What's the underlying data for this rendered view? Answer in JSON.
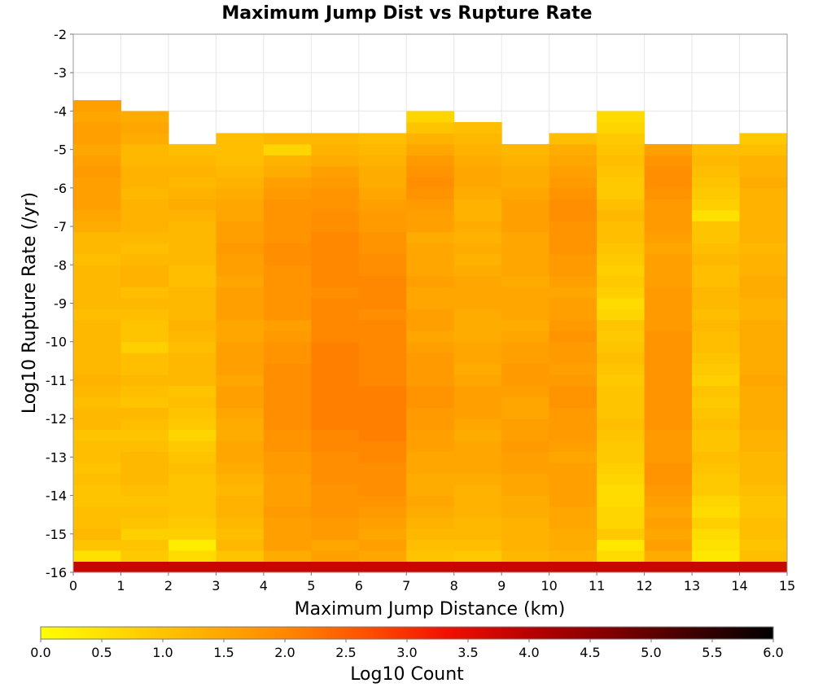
{
  "chart_data": {
    "type": "heatmap",
    "title": "Maximum Jump Dist vs Rupture Rate",
    "xlabel": "Maximum Jump Distance (km)",
    "ylabel": "Log10 Rupture Rate (/yr)",
    "xlim": [
      0,
      15
    ],
    "ylim": [
      -16,
      -2
    ],
    "x_ticks": [
      "0",
      "1",
      "2",
      "3",
      "4",
      "5",
      "6",
      "7",
      "8",
      "9",
      "10",
      "11",
      "12",
      "13",
      "14",
      "15"
    ],
    "y_ticks": [
      "-2",
      "-3",
      "-4",
      "-5",
      "-6",
      "-7",
      "-8",
      "-9",
      "-10",
      "-11",
      "-12",
      "-13",
      "-14",
      "-15",
      "-16"
    ],
    "x_bin_width": 1,
    "y_bin_height": 0.2857,
    "columns": [
      {
        "x": 0.5,
        "top": -3.3,
        "values": [
          3.8,
          0.5,
          1.0,
          1.2,
          1.1,
          1.1,
          1.0,
          1.0,
          1.1,
          1.0,
          1.1,
          1.1,
          1.0,
          1.2,
          1.2,
          1.1,
          1.2,
          1.3,
          1.2,
          1.2,
          1.2,
          1.2,
          1.2,
          1.1,
          1.2,
          1.2,
          1.2,
          1.2,
          1.1,
          1.2,
          1.2,
          1.4,
          1.5,
          1.6,
          1.6,
          1.6,
          1.7,
          1.6,
          1.5,
          1.6,
          1.6,
          1.5,
          1.6
        ]
      },
      {
        "x": 1.5,
        "top": -3.6,
        "values": [
          3.8,
          0.9,
          1.0,
          0.8,
          1.0,
          1.1,
          1.0,
          1.1,
          1.2,
          1.2,
          1.2,
          1.1,
          1.0,
          1.1,
          1.2,
          1.0,
          1.1,
          1.2,
          1.1,
          1.1,
          0.8,
          1.0,
          1.0,
          1.1,
          1.2,
          1.1,
          1.3,
          1.3,
          1.2,
          1.1,
          1.2,
          1.3,
          1.3,
          1.3,
          1.2,
          1.3,
          1.3,
          1.2,
          1.2,
          1.4,
          1.5,
          1.4
        ]
      },
      {
        "x": 2.5,
        "top": -4.15,
        "values": [
          3.8,
          0.6,
          0.3,
          0.8,
          0.9,
          1.0,
          1.0,
          1.0,
          1.0,
          1.1,
          1.0,
          0.9,
          0.7,
          0.9,
          1.0,
          1.1,
          1.0,
          1.2,
          1.2,
          1.2,
          1.1,
          1.2,
          1.3,
          1.2,
          1.2,
          1.2,
          1.1,
          1.1,
          1.2,
          1.2,
          1.2,
          1.2,
          1.3,
          1.4,
          1.3,
          1.2,
          1.3,
          1.2,
          1.1
        ]
      },
      {
        "x": 3.5,
        "top": -3.9,
        "values": [
          3.8,
          1.0,
          1.2,
          1.1,
          1.2,
          1.3,
          1.3,
          1.2,
          1.3,
          1.4,
          1.5,
          1.5,
          1.4,
          1.4,
          1.5,
          1.6,
          1.6,
          1.5,
          1.6,
          1.6,
          1.6,
          1.5,
          1.5,
          1.6,
          1.6,
          1.6,
          1.5,
          1.6,
          1.6,
          1.7,
          1.6,
          1.6,
          1.5,
          1.5,
          1.4,
          1.3,
          1.2,
          1.1,
          1.1,
          1.1
        ]
      },
      {
        "x": 4.5,
        "top": -3.9,
        "values": [
          3.8,
          1.4,
          1.6,
          1.6,
          1.6,
          1.7,
          1.6,
          1.6,
          1.6,
          1.7,
          1.7,
          1.8,
          1.8,
          1.9,
          1.9,
          1.9,
          1.9,
          1.9,
          1.9,
          1.8,
          1.8,
          1.7,
          1.6,
          1.8,
          1.8,
          1.8,
          1.8,
          1.8,
          1.9,
          1.9,
          1.8,
          1.8,
          1.8,
          1.8,
          1.7,
          1.6,
          1.4,
          1.3,
          0.7,
          1.2
        ]
      },
      {
        "x": 5.5,
        "top": -3.85,
        "values": [
          3.8,
          1.6,
          1.5,
          1.7,
          1.7,
          1.8,
          1.8,
          1.8,
          1.9,
          1.9,
          1.9,
          2.0,
          2.0,
          2.1,
          2.1,
          2.1,
          2.1,
          2.1,
          2.1,
          2.1,
          2.1,
          2.0,
          2.0,
          2.0,
          2.0,
          1.9,
          2.0,
          2.0,
          2.0,
          2.0,
          2.0,
          1.9,
          1.9,
          1.8,
          1.8,
          1.7,
          1.6,
          1.4,
          1.3,
          1.2
        ]
      },
      {
        "x": 6.5,
        "top": -3.9,
        "values": [
          3.8,
          1.5,
          1.6,
          1.5,
          1.6,
          1.7,
          1.8,
          1.9,
          1.9,
          1.9,
          2.0,
          2.0,
          2.1,
          2.1,
          2.1,
          2.1,
          2.1,
          2.0,
          2.0,
          2.0,
          2.0,
          2.0,
          2.0,
          1.9,
          2.0,
          2.0,
          2.0,
          1.9,
          1.9,
          1.8,
          1.8,
          1.7,
          1.7,
          1.6,
          1.5,
          1.4,
          1.4,
          1.3,
          1.2,
          1.1
        ]
      },
      {
        "x": 7.5,
        "top": -3.6,
        "values": [
          3.8,
          1.0,
          1.1,
          1.2,
          1.3,
          1.4,
          1.5,
          1.4,
          1.4,
          1.5,
          1.5,
          1.6,
          1.6,
          1.7,
          1.7,
          1.8,
          1.8,
          1.7,
          1.7,
          1.7,
          1.6,
          1.5,
          1.6,
          1.6,
          1.5,
          1.5,
          1.6,
          1.5,
          1.5,
          1.5,
          1.4,
          1.6,
          1.6,
          1.7,
          1.8,
          1.9,
          1.8,
          1.7,
          1.5,
          1.3,
          1.0,
          0.7
        ]
      },
      {
        "x": 8.5,
        "top": -3.9,
        "values": [
          3.8,
          0.9,
          1.1,
          1.2,
          1.2,
          1.3,
          1.3,
          1.3,
          1.4,
          1.5,
          1.5,
          1.5,
          1.4,
          1.5,
          1.6,
          1.6,
          1.6,
          1.5,
          1.4,
          1.5,
          1.5,
          1.4,
          1.4,
          1.4,
          1.5,
          1.5,
          1.5,
          1.4,
          1.3,
          1.4,
          1.3,
          1.4,
          1.3,
          1.3,
          1.4,
          1.5,
          1.5,
          1.4,
          1.3,
          1.2,
          1.1
        ]
      },
      {
        "x": 9.5,
        "top": -4.15,
        "values": [
          3.8,
          1.2,
          1.3,
          1.3,
          1.3,
          1.4,
          1.4,
          1.5,
          1.5,
          1.6,
          1.6,
          1.7,
          1.6,
          1.6,
          1.5,
          1.5,
          1.6,
          1.7,
          1.7,
          1.6,
          1.6,
          1.5,
          1.4,
          1.5,
          1.5,
          1.5,
          1.4,
          1.5,
          1.5,
          1.5,
          1.5,
          1.6,
          1.6,
          1.6,
          1.5,
          1.4,
          1.4,
          1.3,
          1.2
        ]
      },
      {
        "x": 10.5,
        "top": -3.9,
        "values": [
          3.8,
          1.3,
          1.4,
          1.4,
          1.5,
          1.5,
          1.6,
          1.6,
          1.6,
          1.6,
          1.5,
          1.6,
          1.7,
          1.7,
          1.7,
          1.8,
          1.8,
          1.7,
          1.6,
          1.7,
          1.7,
          1.8,
          1.7,
          1.6,
          1.6,
          1.5,
          1.6,
          1.7,
          1.7,
          1.8,
          1.8,
          1.8,
          1.9,
          1.9,
          1.8,
          1.7,
          1.6,
          1.5,
          1.4,
          1.1
        ]
      },
      {
        "x": 11.5,
        "top": -3.6,
        "values": [
          3.8,
          0.6,
          0.4,
          0.9,
          0.7,
          0.7,
          0.6,
          0.6,
          0.7,
          0.8,
          0.9,
          0.9,
          1.0,
          1.1,
          1.0,
          1.0,
          1.0,
          0.9,
          1.0,
          1.1,
          1.0,
          0.9,
          1.0,
          0.7,
          0.6,
          0.8,
          0.9,
          0.8,
          0.9,
          1.0,
          1.1,
          1.1,
          1.2,
          1.1,
          0.9,
          0.9,
          1.0,
          1.1,
          1.0,
          0.9,
          0.7,
          0.6
        ]
      },
      {
        "x": 12.5,
        "top": -4.15,
        "values": [
          3.8,
          1.4,
          1.6,
          1.5,
          1.6,
          1.5,
          1.6,
          1.7,
          1.8,
          1.8,
          1.7,
          1.7,
          1.7,
          1.8,
          1.8,
          1.8,
          1.8,
          1.8,
          1.8,
          1.8,
          1.8,
          1.8,
          1.7,
          1.7,
          1.7,
          1.7,
          1.6,
          1.6,
          1.6,
          1.5,
          1.6,
          1.7,
          1.7,
          1.7,
          1.8,
          1.9,
          1.9,
          1.8,
          1.6
        ]
      },
      {
        "x": 13.5,
        "top": -4.15,
        "values": [
          3.8,
          0.4,
          0.5,
          0.6,
          0.8,
          0.6,
          0.7,
          0.9,
          0.9,
          1.0,
          1.1,
          1.0,
          1.0,
          1.1,
          1.0,
          0.9,
          1.0,
          0.8,
          0.9,
          1.0,
          1.1,
          1.1,
          1.2,
          1.1,
          1.2,
          1.2,
          1.1,
          1.1,
          1.2,
          1.1,
          1.0,
          1.0,
          0.5,
          0.8,
          0.9,
          1.0,
          1.1,
          1.2,
          1.1
        ]
      },
      {
        "x": 14.5,
        "top": -4.15,
        "values": [
          3.8,
          1.1,
          1.0,
          1.1,
          1.1,
          1.0,
          1.0,
          1.1,
          1.2,
          1.2,
          1.2,
          1.3,
          1.3,
          1.4,
          1.4,
          1.4,
          1.4,
          1.5,
          1.4,
          1.4,
          1.4,
          1.4,
          1.4,
          1.3,
          1.3,
          1.4,
          1.4,
          1.3,
          1.3,
          1.2,
          1.3,
          1.3,
          1.3,
          1.3,
          1.3,
          1.4,
          1.3,
          1.3,
          1.1,
          0.9
        ]
      }
    ],
    "colorbar": {
      "label": "Log10 Count",
      "range": [
        0,
        6
      ],
      "ticks": [
        "0.0",
        "0.5",
        "1.0",
        "1.5",
        "2.0",
        "2.5",
        "3.0",
        "3.5",
        "4.0",
        "4.5",
        "5.0",
        "5.5",
        "6.0"
      ]
    },
    "colormap": [
      "#ffff00",
      "#ffd700",
      "#ffb000",
      "#ff8800",
      "#ff5000",
      "#f01000",
      "#b80000",
      "#800000",
      "#400000",
      "#000000"
    ],
    "grid": true
  }
}
